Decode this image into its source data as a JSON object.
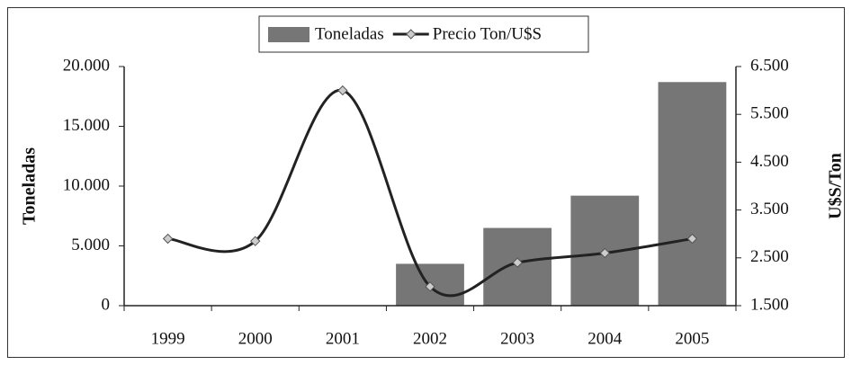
{
  "chart_data": {
    "type": "bar-line",
    "categories": [
      "1999",
      "2000",
      "2001",
      "2002",
      "2003",
      "2004",
      "2005"
    ],
    "series": [
      {
        "name": "Toneladas",
        "type": "bar",
        "color": "#767676",
        "values": [
          0,
          0,
          0,
          3500,
          6500,
          9200,
          18700
        ]
      },
      {
        "name": "Precio Ton/U$S",
        "type": "line",
        "axis": "y2",
        "color": "#222222",
        "marker_color": "#cccccc",
        "values": [
          2900,
          2850,
          6000,
          1900,
          2400,
          2600,
          2900
        ]
      }
    ],
    "ylabel": "Toneladas",
    "y2label": "U$S/Ton",
    "ylim": [
      0,
      20000
    ],
    "yticks": [
      0,
      {
        "value": 5000,
        "label": "5.000"
      },
      {
        "value": 10000,
        "label": "10.000"
      },
      {
        "value": 15000,
        "label": "15.000"
      },
      {
        "value": 20000,
        "label": "20.000"
      }
    ],
    "y2lim": [
      1500,
      6500
    ],
    "y2ticks": [
      {
        "value": 1500,
        "label": "1.500"
      },
      {
        "value": 2500,
        "label": "2.500"
      },
      {
        "value": 3500,
        "label": "3.500"
      },
      {
        "value": 4500,
        "label": "4.500"
      },
      {
        "value": 5500,
        "label": "5.500"
      },
      {
        "value": 6500,
        "label": "6.500"
      }
    ],
    "grid": false,
    "legend": "top"
  }
}
